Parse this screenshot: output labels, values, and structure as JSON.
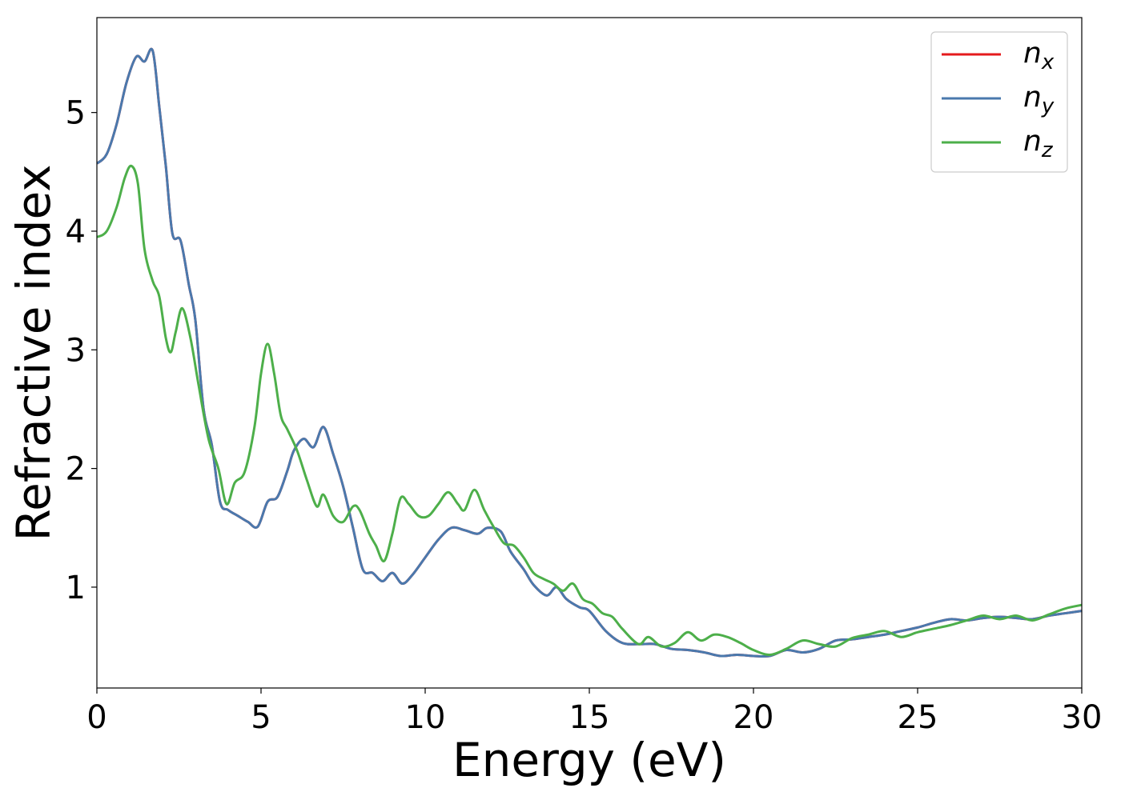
{
  "chart_data": {
    "type": "line",
    "xlabel": "Energy (eV)",
    "ylabel": "Refractive index",
    "xlim": [
      0,
      30
    ],
    "ylim": [
      0.15,
      5.8
    ],
    "xticks": [
      0,
      5,
      10,
      15,
      20,
      25,
      30
    ],
    "yticks": [
      1,
      2,
      3,
      4,
      5
    ],
    "grid": false,
    "legend_position": "top-right",
    "series": [
      {
        "name": "n",
        "subscript": "x",
        "color": "#e41a1c",
        "x": [
          0,
          0.3,
          0.6,
          0.9,
          1.2,
          1.45,
          1.7,
          1.9,
          2.1,
          2.3,
          2.55,
          2.8,
          3.0,
          3.25,
          3.5,
          3.75,
          4.0,
          4.3,
          4.6,
          4.9,
          5.2,
          5.5,
          5.8,
          6.0,
          6.3,
          6.6,
          6.9,
          7.2,
          7.5,
          7.8,
          8.1,
          8.4,
          8.7,
          9.0,
          9.3,
          9.6,
          10.0,
          10.4,
          10.8,
          11.2,
          11.6,
          11.9,
          12.3,
          12.6,
          13.0,
          13.3,
          13.7,
          14.0,
          14.3,
          14.7,
          15.0,
          15.5,
          16.0,
          16.5,
          17.0,
          17.5,
          18.0,
          18.5,
          19.0,
          19.5,
          20.0,
          20.5,
          21.0,
          21.5,
          22.0,
          22.5,
          23.0,
          23.5,
          24.0,
          24.5,
          25.0,
          25.5,
          26.0,
          26.5,
          27.0,
          27.5,
          28.0,
          28.5,
          29.0,
          29.5,
          30.0
        ],
        "y": [
          4.57,
          4.65,
          4.9,
          5.25,
          5.47,
          5.43,
          5.52,
          5.05,
          4.55,
          3.98,
          3.92,
          3.55,
          3.25,
          2.5,
          2.2,
          1.72,
          1.65,
          1.6,
          1.55,
          1.51,
          1.72,
          1.76,
          1.98,
          2.15,
          2.25,
          2.18,
          2.35,
          2.12,
          1.85,
          1.5,
          1.15,
          1.12,
          1.05,
          1.12,
          1.03,
          1.1,
          1.25,
          1.4,
          1.5,
          1.48,
          1.45,
          1.5,
          1.47,
          1.3,
          1.15,
          1.02,
          0.93,
          1.0,
          0.9,
          0.83,
          0.8,
          0.63,
          0.53,
          0.52,
          0.52,
          0.48,
          0.47,
          0.45,
          0.42,
          0.43,
          0.42,
          0.42,
          0.47,
          0.45,
          0.48,
          0.55,
          0.56,
          0.58,
          0.6,
          0.63,
          0.66,
          0.7,
          0.73,
          0.72,
          0.74,
          0.75,
          0.74,
          0.73,
          0.76,
          0.78,
          0.8
        ]
      },
      {
        "name": "n",
        "subscript": "y",
        "color": "#4a79ad",
        "x": [
          0,
          0.3,
          0.6,
          0.9,
          1.2,
          1.45,
          1.7,
          1.9,
          2.1,
          2.3,
          2.55,
          2.8,
          3.0,
          3.25,
          3.5,
          3.75,
          4.0,
          4.3,
          4.6,
          4.9,
          5.2,
          5.5,
          5.8,
          6.0,
          6.3,
          6.6,
          6.9,
          7.2,
          7.5,
          7.8,
          8.1,
          8.4,
          8.7,
          9.0,
          9.3,
          9.6,
          10.0,
          10.4,
          10.8,
          11.2,
          11.6,
          11.9,
          12.3,
          12.6,
          13.0,
          13.3,
          13.7,
          14.0,
          14.3,
          14.7,
          15.0,
          15.5,
          16.0,
          16.5,
          17.0,
          17.5,
          18.0,
          18.5,
          19.0,
          19.5,
          20.0,
          20.5,
          21.0,
          21.5,
          22.0,
          22.5,
          23.0,
          23.5,
          24.0,
          24.5,
          25.0,
          25.5,
          26.0,
          26.5,
          27.0,
          27.5,
          28.0,
          28.5,
          29.0,
          29.5,
          30.0
        ],
        "y": [
          4.57,
          4.65,
          4.9,
          5.25,
          5.47,
          5.43,
          5.52,
          5.05,
          4.55,
          3.98,
          3.92,
          3.55,
          3.25,
          2.5,
          2.2,
          1.72,
          1.65,
          1.6,
          1.55,
          1.51,
          1.72,
          1.76,
          1.98,
          2.15,
          2.25,
          2.18,
          2.35,
          2.12,
          1.85,
          1.5,
          1.15,
          1.12,
          1.05,
          1.12,
          1.03,
          1.1,
          1.25,
          1.4,
          1.5,
          1.48,
          1.45,
          1.5,
          1.47,
          1.3,
          1.15,
          1.02,
          0.93,
          1.0,
          0.9,
          0.83,
          0.8,
          0.63,
          0.53,
          0.52,
          0.52,
          0.48,
          0.47,
          0.45,
          0.42,
          0.43,
          0.42,
          0.42,
          0.47,
          0.45,
          0.48,
          0.55,
          0.56,
          0.58,
          0.6,
          0.63,
          0.66,
          0.7,
          0.73,
          0.72,
          0.74,
          0.75,
          0.74,
          0.73,
          0.76,
          0.78,
          0.8
        ]
      },
      {
        "name": "n",
        "subscript": "z",
        "color": "#4daf4a",
        "x": [
          0,
          0.3,
          0.6,
          0.85,
          1.05,
          1.25,
          1.45,
          1.7,
          1.9,
          2.1,
          2.25,
          2.4,
          2.6,
          2.85,
          3.1,
          3.4,
          3.7,
          3.95,
          4.2,
          4.5,
          4.8,
          5.0,
          5.2,
          5.4,
          5.6,
          5.8,
          6.1,
          6.4,
          6.7,
          6.9,
          7.2,
          7.5,
          7.8,
          8.0,
          8.3,
          8.5,
          8.75,
          9.0,
          9.25,
          9.5,
          9.8,
          10.1,
          10.4,
          10.7,
          11.0,
          11.2,
          11.5,
          11.8,
          12.1,
          12.4,
          12.7,
          13.0,
          13.3,
          13.6,
          13.9,
          14.2,
          14.5,
          14.8,
          15.1,
          15.4,
          15.7,
          16.0,
          16.5,
          16.8,
          17.2,
          17.6,
          18.0,
          18.4,
          18.8,
          19.2,
          19.6,
          20.0,
          20.5,
          21.0,
          21.5,
          22.0,
          22.5,
          23.0,
          23.5,
          24.0,
          24.5,
          25.0,
          25.5,
          26.0,
          26.5,
          27.0,
          27.5,
          28.0,
          28.5,
          29.0,
          29.5,
          30.0
        ],
        "y": [
          3.95,
          4.0,
          4.2,
          4.45,
          4.55,
          4.4,
          3.85,
          3.58,
          3.45,
          3.1,
          2.98,
          3.15,
          3.35,
          3.1,
          2.7,
          2.25,
          2.0,
          1.7,
          1.88,
          1.97,
          2.35,
          2.8,
          3.05,
          2.8,
          2.45,
          2.33,
          2.15,
          1.9,
          1.68,
          1.78,
          1.6,
          1.55,
          1.68,
          1.65,
          1.45,
          1.35,
          1.22,
          1.45,
          1.75,
          1.7,
          1.6,
          1.6,
          1.7,
          1.8,
          1.7,
          1.65,
          1.82,
          1.65,
          1.5,
          1.37,
          1.35,
          1.25,
          1.12,
          1.07,
          1.03,
          0.97,
          1.03,
          0.9,
          0.86,
          0.78,
          0.75,
          0.65,
          0.52,
          0.58,
          0.5,
          0.53,
          0.62,
          0.55,
          0.6,
          0.58,
          0.53,
          0.47,
          0.43,
          0.48,
          0.55,
          0.52,
          0.5,
          0.57,
          0.6,
          0.63,
          0.58,
          0.62,
          0.65,
          0.68,
          0.72,
          0.76,
          0.73,
          0.76,
          0.72,
          0.77,
          0.82,
          0.85
        ]
      }
    ]
  }
}
